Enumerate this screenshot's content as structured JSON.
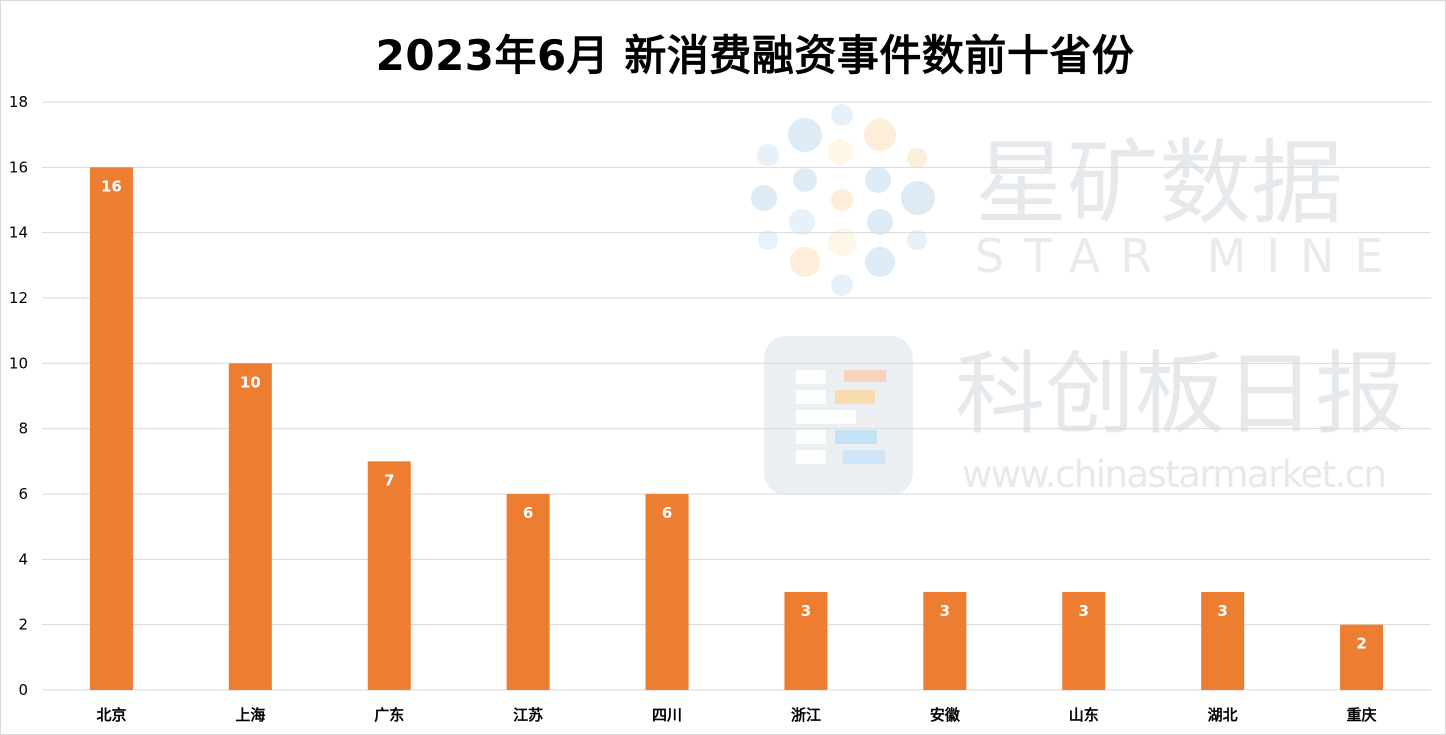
{
  "chart_data": {
    "type": "bar",
    "title": "2023年6月 新消费融资事件数前十省份",
    "xlabel": "",
    "ylabel": "",
    "categories": [
      "北京",
      "上海",
      "广东",
      "江苏",
      "四川",
      "浙江",
      "安徽",
      "山东",
      "湖北",
      "重庆"
    ],
    "values": [
      16,
      10,
      7,
      6,
      6,
      3,
      3,
      3,
      3,
      2
    ],
    "ylim": [
      0,
      18
    ],
    "yticks": [
      0,
      2,
      4,
      6,
      8,
      10,
      12,
      14,
      16,
      18
    ],
    "grid": true,
    "legend": "none",
    "data_labels": true
  },
  "colors": {
    "bar": "#ED7D31",
    "grid": "#D9D9D9",
    "label_text": "#FFFFFF",
    "axis_text": "#000000"
  },
  "watermark": {
    "brand_cn": "星矿数据",
    "brand_en": "STAR MINE",
    "publisher_cn": "科创板日报",
    "url": "www.chinastarmarket.cn"
  }
}
